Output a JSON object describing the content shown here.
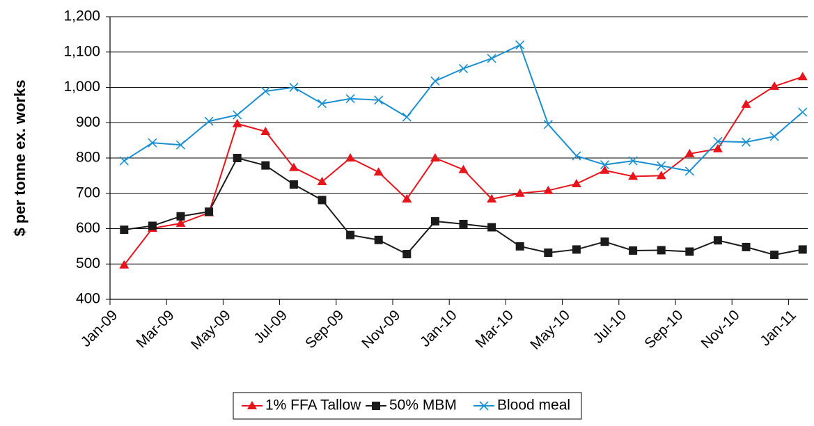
{
  "chart_data": {
    "type": "line",
    "y_label": "$ per tonne ex. works",
    "categories": [
      "Jan-09",
      null,
      "Mar-09",
      null,
      "May-09",
      null,
      "Jul-09",
      null,
      "Sep-09",
      null,
      "Nov-09",
      null,
      "Jan-10",
      null,
      "Mar-10",
      null,
      "May-10",
      null,
      "Jul-10",
      null,
      "Sep-10",
      null,
      "Nov-10",
      null,
      "Jan-11"
    ],
    "series": [
      {
        "name": "1% FFA Tallow",
        "color": "#e8141c",
        "marker": "triangle",
        "values": [
          497,
          601,
          615,
          645,
          897,
          875,
          773,
          733,
          800,
          760,
          684,
          800,
          767,
          684,
          700,
          708,
          727,
          765,
          748,
          750,
          812,
          826,
          952,
          1003,
          1030
        ]
      },
      {
        "name": "50% MBM",
        "color": "#1a1a1a",
        "marker": "square",
        "values": [
          597,
          608,
          635,
          648,
          800,
          779,
          725,
          681,
          582,
          568,
          528,
          621,
          613,
          604,
          550,
          532,
          541,
          563,
          538,
          539,
          535,
          567,
          548,
          526,
          541
        ]
      },
      {
        "name": "Blood meal",
        "color": "#1a8fcf",
        "marker": "x",
        "values": [
          792,
          843,
          837,
          904,
          922,
          989,
          1000,
          954,
          968,
          964,
          916,
          1018,
          1053,
          1082,
          1120,
          895,
          806,
          781,
          792,
          778,
          763,
          847,
          845,
          861,
          930
        ]
      }
    ],
    "ylim": [
      400,
      1200
    ],
    "yticks": [
      400,
      500,
      600,
      700,
      800,
      900,
      {
        "value": 1000,
        "label": "1,000"
      },
      {
        "value": 1100,
        "label": "1,100"
      },
      {
        "value": 1200,
        "label": "1,200"
      }
    ],
    "grid": true,
    "legend": "bottom"
  }
}
